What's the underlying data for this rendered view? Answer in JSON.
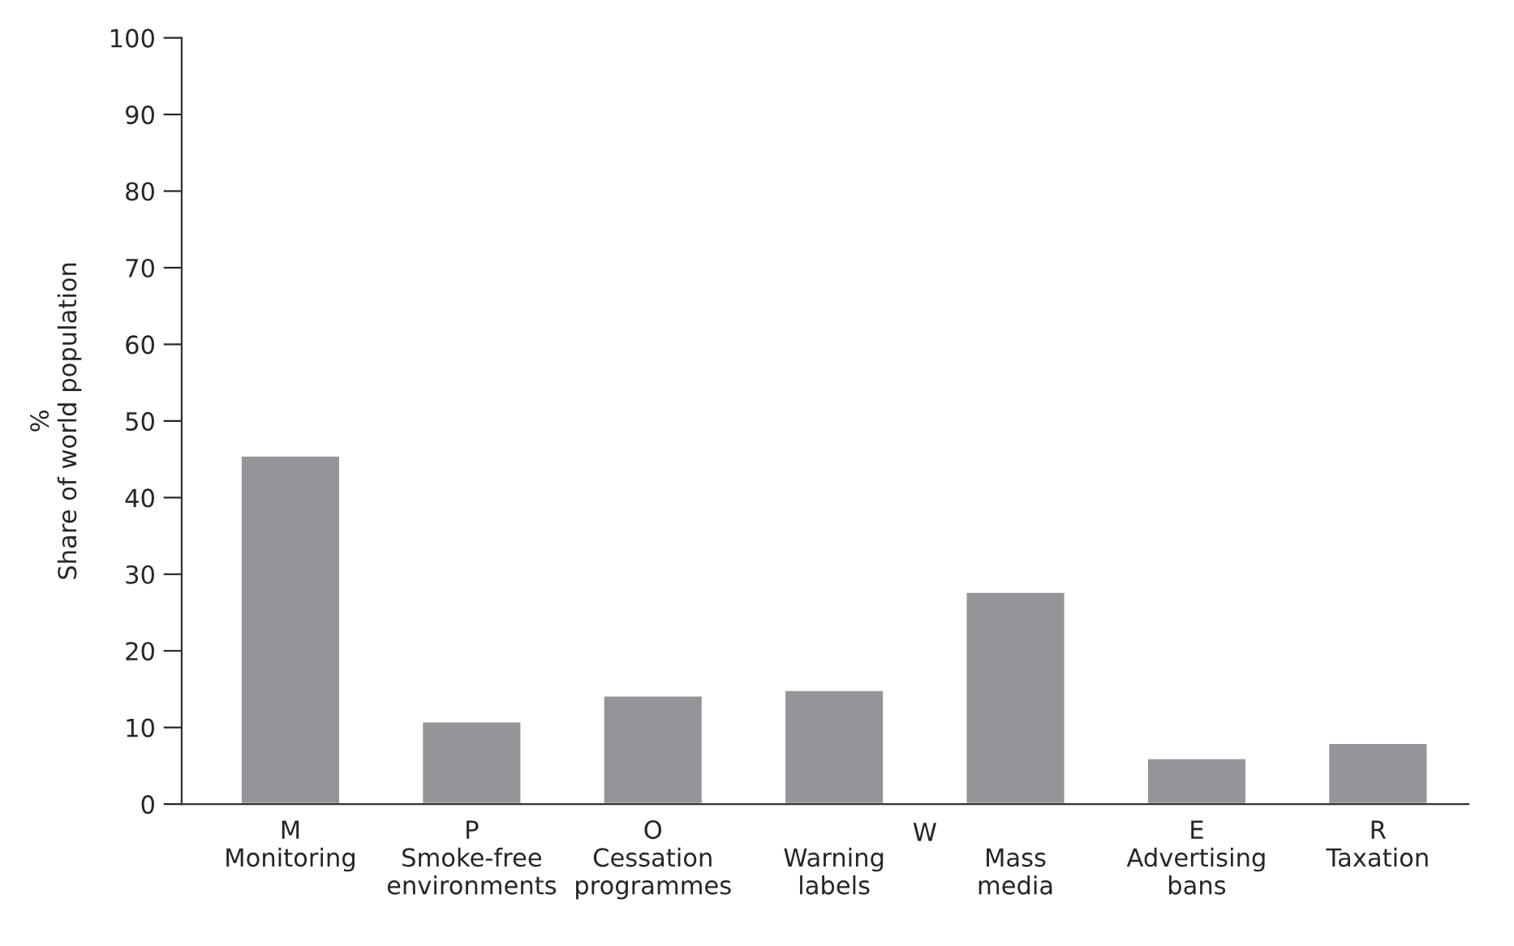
{
  "chart_data": {
    "type": "bar",
    "ylabel": "%\nShare of world population",
    "categories": [
      "M\nMonitoring",
      "P\nSmoke-free\nenvironments",
      "O\nCessation\nprogrammes",
      "\nWarning\nlabels",
      "\nMass\nmedia",
      "E\nAdvertising\nbans",
      "R\nTaxation"
    ],
    "values": [
      45.5,
      10.8,
      14.2,
      14.9,
      27.7,
      6.0,
      8.0
    ],
    "color": "#939598",
    "annotations": [
      "W"
    ],
    "ylim": [
      0,
      100
    ],
    "yticks": [
      0,
      10,
      20,
      30,
      40,
      50,
      60,
      70,
      80,
      90,
      100
    ],
    "grid": false
  }
}
